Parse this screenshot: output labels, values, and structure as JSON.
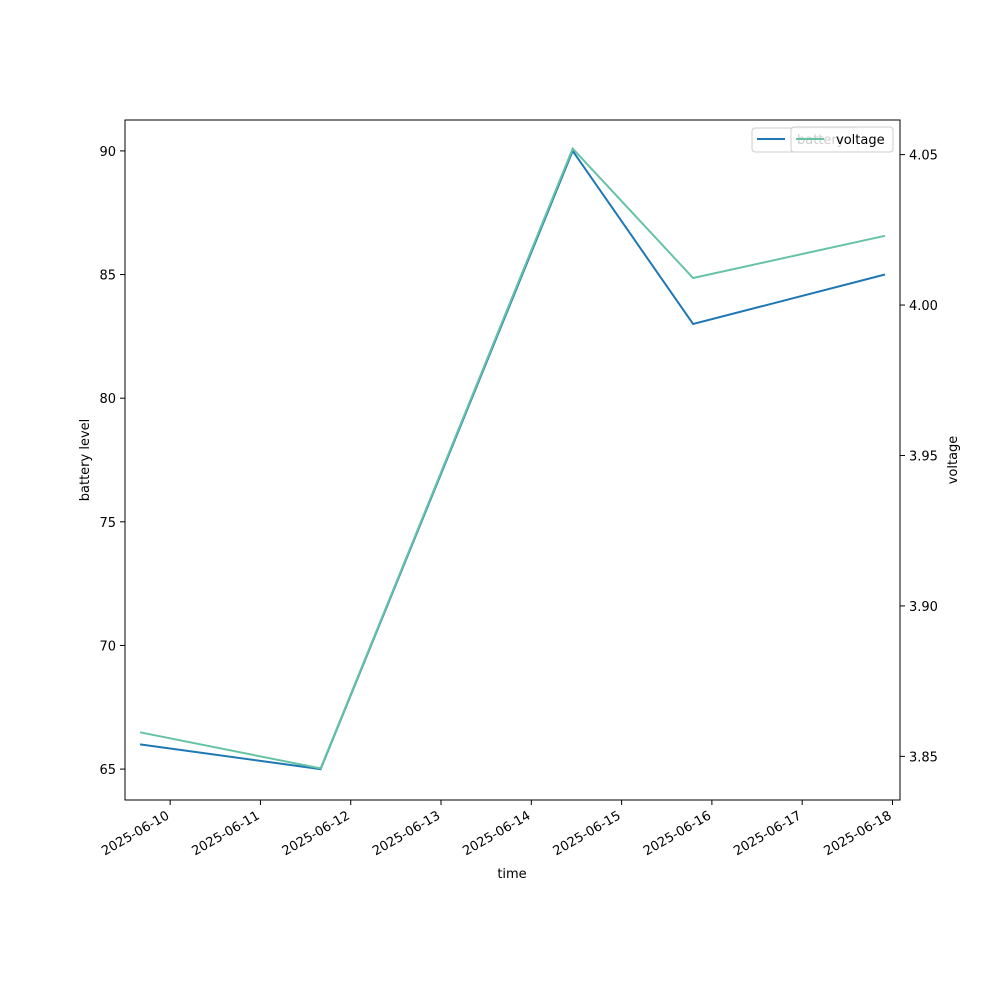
{
  "chart_data": {
    "type": "line",
    "x": [
      "2025-06-09T16:00",
      "2025-06-11T16:00",
      "2025-06-14T11:00",
      "2025-06-15T19:00",
      "2025-06-17T22:00"
    ],
    "x_ticks": [
      "2025-06-10",
      "2025-06-11",
      "2025-06-12",
      "2025-06-13",
      "2025-06-14",
      "2025-06-15",
      "2025-06-16",
      "2025-06-17",
      "2025-06-18"
    ],
    "xlabel": "time",
    "left_axis": {
      "label": "battery level",
      "ylim": [
        63.75,
        91.25
      ],
      "ticks": [
        "65",
        "70",
        "75",
        "80",
        "85",
        "90"
      ]
    },
    "right_axis": {
      "label": "voltage",
      "ylim": [
        3.8355,
        4.0615
      ],
      "ticks": [
        "3.85",
        "3.90",
        "3.95",
        "4.00",
        "4.05"
      ]
    },
    "series": [
      {
        "name": "battery",
        "axis": "left",
        "color": "#1f77b4",
        "values": [
          66,
          65,
          90,
          83,
          85
        ]
      },
      {
        "name": "voltage",
        "axis": "right",
        "color": "#66c2a5",
        "values": [
          3.858,
          3.846,
          4.052,
          4.009,
          4.023
        ]
      }
    ],
    "legend_position": "top-right",
    "grid": false
  }
}
